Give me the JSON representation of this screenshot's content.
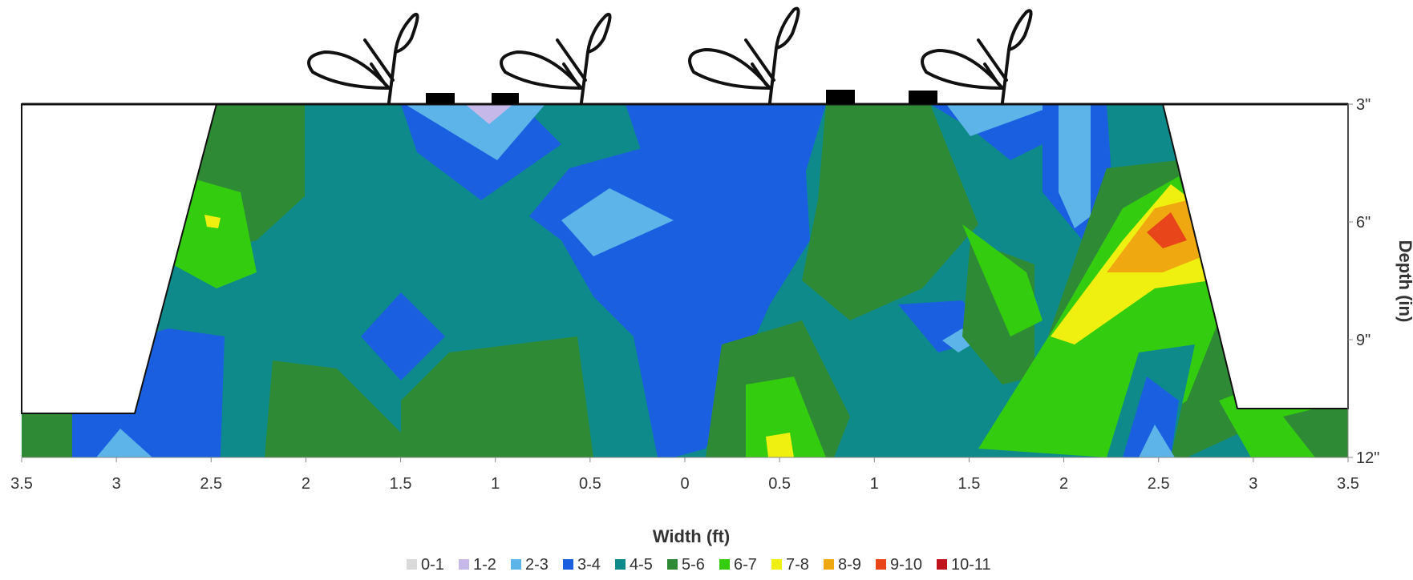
{
  "chart_data": {
    "type": "heatmap",
    "subtype": "filled-contour",
    "xlabel": "Width (ft)",
    "ylabel": "Depth (in)",
    "x_ticks": [
      "3.5",
      "3",
      "2.5",
      "2",
      "1.5",
      "1",
      "0.5",
      "0",
      "0.5",
      "1",
      "1.5",
      "2",
      "2.5",
      "3",
      "3.5"
    ],
    "y_ticks": [
      "3\"",
      "6\"",
      "9\"",
      "12\""
    ],
    "xlim": [
      -3.5,
      3.5
    ],
    "ylim": [
      3,
      12
    ],
    "legend_position": "bottom",
    "legend": [
      {
        "label": "0-1",
        "color": "#d9d9d9"
      },
      {
        "label": "1-2",
        "color": "#c6b9ea"
      },
      {
        "label": "2-3",
        "color": "#5db4e8"
      },
      {
        "label": "3-4",
        "color": "#1a5fe0"
      },
      {
        "label": "4-5",
        "color": "#0f8a8a"
      },
      {
        "label": "5-6",
        "color": "#2f8a35"
      },
      {
        "label": "6-7",
        "color": "#33cc0f"
      },
      {
        "label": "7-8",
        "color": "#f0f010"
      },
      {
        "label": "8-9",
        "color": "#f0a810"
      },
      {
        "label": "9-10",
        "color": "#e8451a"
      },
      {
        "label": "10-11",
        "color": "#c0141c"
      }
    ],
    "bed_profile": {
      "top_depth_in": 3,
      "top_width_ft": [
        -2.45,
        2.55
      ],
      "base_depth_in": 11,
      "base_width_ft": [
        -2.95,
        3.0
      ]
    },
    "plants_x_ft": [
      -1.55,
      -0.5,
      0.5,
      1.75
    ],
    "drip_emitters_x_ft": [
      -1.3,
      -0.95,
      0.8,
      1.25
    ]
  }
}
